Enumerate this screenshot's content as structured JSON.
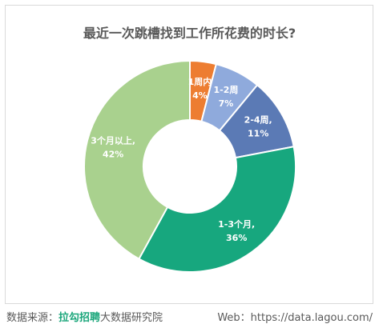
{
  "chart_data": {
    "type": "pie",
    "variant": "donut",
    "title": "最近一次跳槽找到工作所花费的时长?",
    "series": [
      {
        "name": "1周内",
        "value": 4,
        "label": "4%",
        "color": "#ed7d31",
        "label_color": "#ffffff"
      },
      {
        "name": "1-2周",
        "value": 7,
        "label": "7%",
        "color": "#8faadc",
        "label_color": "#ffffff"
      },
      {
        "name": "2-4周,",
        "value": 11,
        "label": "11%",
        "color": "#5b7ab5",
        "label_color": "#ffffff"
      },
      {
        "name": "1-3个月,",
        "value": 36,
        "label": "36%",
        "color": "#17a77e",
        "label_color": "#ffffff"
      },
      {
        "name": "3个月以上,",
        "value": 42,
        "label": "42%",
        "color": "#a9d18e",
        "label_color": "#ffffff"
      }
    ]
  },
  "footer": {
    "source_prefix": "数据来源：",
    "source_brand": "拉勾招聘",
    "source_suffix": "大数据研究院",
    "web": "Web：https://data.lagou.com/"
  }
}
